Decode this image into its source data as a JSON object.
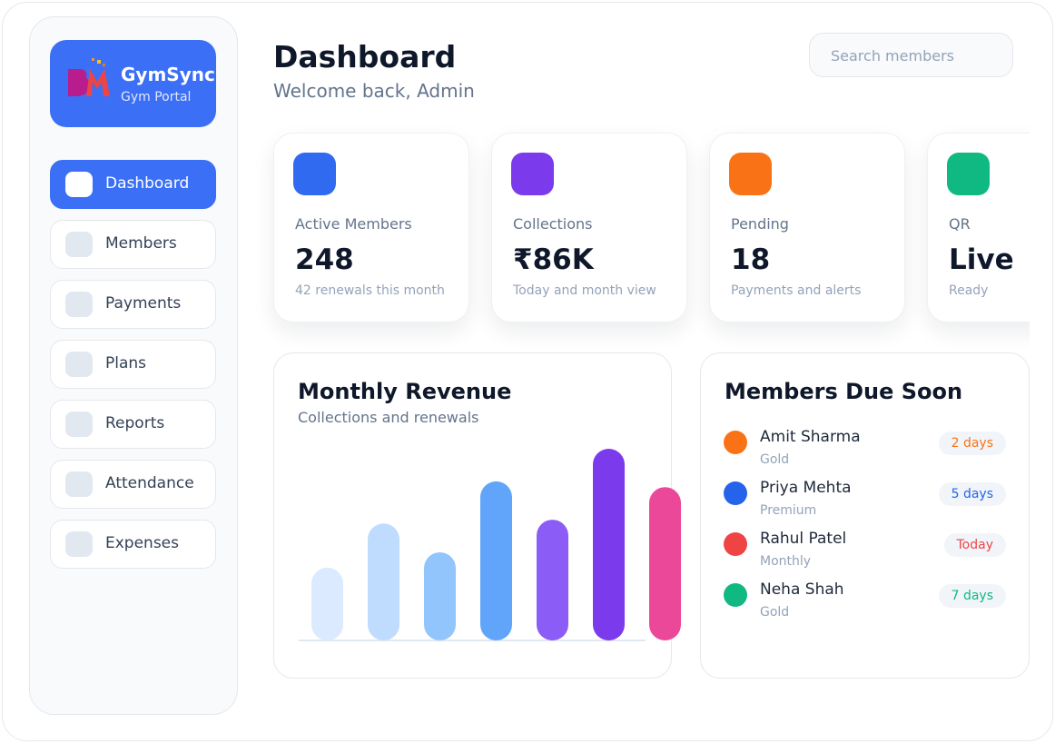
{
  "sidebar": {
    "brand": "GymSync",
    "brand_subtitle": "Gym Portal",
    "nav": [
      "Dashboard",
      "Members",
      "Payments",
      "Plans",
      "Reports",
      "Attendance",
      "Expenses"
    ],
    "active": 0
  },
  "header": {
    "title": "Dashboard",
    "subtitle": "Welcome back, Admin",
    "search_placeholder": "Search members"
  },
  "stats": [
    {
      "label": "Active Members",
      "value": 248,
      "note": "42 renewals this month",
      "color": "#2f6af0"
    },
    {
      "label": "Collections",
      "value": "₹86K",
      "note": "Today and month view",
      "color": "#7c3aed"
    },
    {
      "label": "Pending",
      "value": 18,
      "note": "Payments and alerts",
      "color": "#f97316"
    },
    {
      "label": "QR",
      "value": "Live",
      "note": "Ready",
      "color": "#10b981"
    }
  ],
  "chart_data": {
    "type": "bar",
    "title": "Monthly Revenue",
    "subtitle": "Collections and renewals",
    "values": [
      38,
      61,
      46,
      83,
      63,
      100,
      80
    ],
    "colors": [
      "#dbeafe",
      "#bfdbfe",
      "#93c5fd",
      "#60a5fa",
      "#8b5cf6",
      "#7c3aed",
      "#ec4899"
    ]
  },
  "due": {
    "title": "Members Due Soon",
    "members": [
      {
        "name": "Amit Sharma",
        "plan": "Gold",
        "due": "2 days",
        "color": "#f97316"
      },
      {
        "name": "Priya Mehta",
        "plan": "Premium",
        "due": "5 days",
        "color": "#2563eb"
      },
      {
        "name": "Rahul Patel",
        "plan": "Monthly",
        "due": "Today",
        "color": "#ef4444"
      },
      {
        "name": "Neha Shah",
        "plan": "Gold",
        "due": "7 days",
        "color": "#10b981"
      }
    ]
  }
}
